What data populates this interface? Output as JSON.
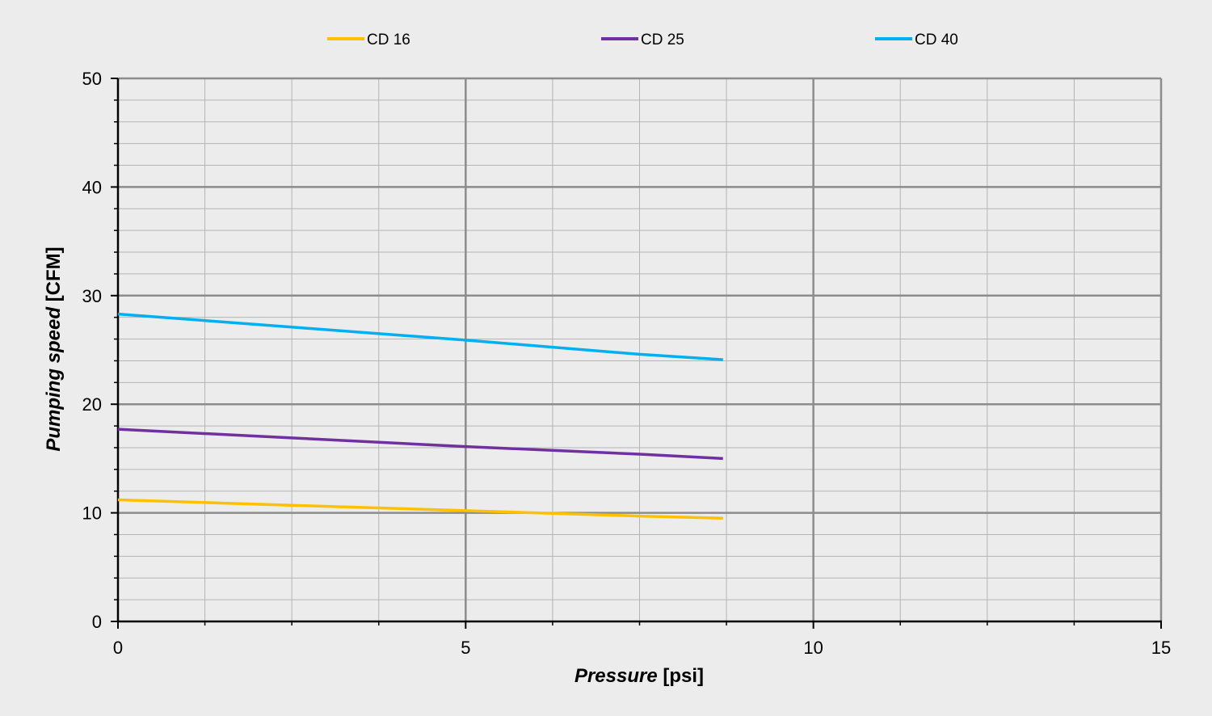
{
  "chart_data": {
    "type": "line",
    "title": "",
    "xlabel_italic": "Pressure",
    "xlabel_unit": " [psi]",
    "ylabel_italic": "Pumping speed",
    "ylabel_unit": " [CFM]",
    "xlim": [
      0,
      15
    ],
    "ylim": [
      0,
      50
    ],
    "x_major_ticks": [
      0,
      5,
      10,
      15
    ],
    "y_major_ticks": [
      0,
      10,
      20,
      30,
      40,
      50
    ],
    "x_minor_step": 1.25,
    "y_minor_step": 2,
    "grid": true,
    "legend_position": "top",
    "series": [
      {
        "name": "CD 16",
        "color": "#ffc000",
        "x": [
          0,
          2.5,
          5,
          7.5,
          8.7
        ],
        "y": [
          11.2,
          10.7,
          10.2,
          9.7,
          9.5
        ]
      },
      {
        "name": "CD 25",
        "color": "#7030a0",
        "x": [
          0,
          2.5,
          5,
          7.5,
          8.7
        ],
        "y": [
          17.7,
          16.9,
          16.1,
          15.4,
          15.0
        ]
      },
      {
        "name": "CD 40",
        "color": "#00b0f0",
        "x": [
          0,
          2.5,
          5,
          7.5,
          8.7
        ],
        "y": [
          28.3,
          27.1,
          25.9,
          24.6,
          24.1
        ]
      }
    ]
  }
}
